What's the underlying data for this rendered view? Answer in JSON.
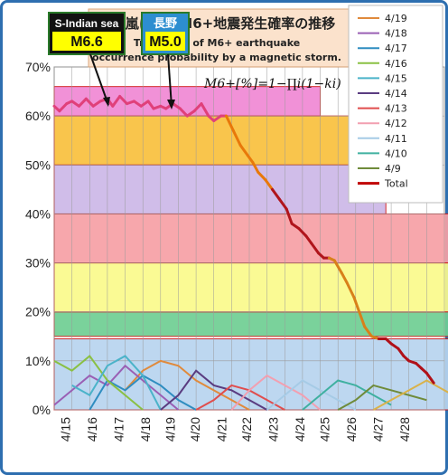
{
  "chart_data": {
    "type": "line",
    "title_jp": "磁気嵐によるM6+地震発生確率の推移",
    "title_en_1": "Transition of M6+ earthquake",
    "title_en_2": "occurrence probability by a magnetic storm.",
    "formula": "M6+[%]=1−∏i(1−ki)",
    "y_ticks": [
      "0%",
      "10%",
      "20%",
      "30%",
      "40%",
      "50%",
      "60%",
      "70%"
    ],
    "ylim": [
      0,
      70
    ],
    "x_ticks": [
      "4/15",
      "4/16",
      "4/17",
      "4/18",
      "4/19",
      "4/20",
      "4/21",
      "4/22",
      "4/23",
      "4/24",
      "4/25",
      "4/26",
      "4/27",
      "4/28"
    ],
    "legend": [
      "4/19",
      "4/18",
      "4/17",
      "4/16",
      "4/15",
      "4/14",
      "4/13",
      "4/12",
      "4/11",
      "4/10",
      "4/9",
      "Total"
    ],
    "annotations": [
      {
        "label1": "S-Indian sea",
        "label2": "M6.6"
      },
      {
        "label1": "長野",
        "label2": "M5.0"
      }
    ],
    "bands": [
      {
        "from": 0,
        "to": 14.5,
        "color": "#b8d4ef",
        "end": 28.5
      },
      {
        "from": 15,
        "to": 20,
        "color": "#6fcf93",
        "end": 26.5
      },
      {
        "from": 20,
        "to": 30,
        "color": "#fafa8c",
        "end": 25.7
      },
      {
        "from": 30,
        "to": 40,
        "color": "#f7a0a6",
        "end": 23.2
      },
      {
        "from": 40,
        "to": 50,
        "color": "#cdb8e8",
        "end": 18.7
      },
      {
        "from": 50,
        "to": 60,
        "color": "#f9c13d",
        "end": 17.2
      },
      {
        "from": 60,
        "to": 66,
        "color": "#f088d4",
        "end": 15.0
      }
    ],
    "total": [
      [
        0,
        62
      ],
      [
        0.3,
        61
      ],
      [
        0.7,
        62.5
      ],
      [
        1,
        63
      ],
      [
        1.4,
        62
      ],
      [
        1.8,
        63.5
      ],
      [
        2.2,
        62
      ],
      [
        2.6,
        63
      ],
      [
        3,
        63.5
      ],
      [
        3.3,
        62
      ],
      [
        3.7,
        64
      ],
      [
        4.1,
        62.5
      ],
      [
        4.5,
        63
      ],
      [
        4.9,
        62
      ],
      [
        5.3,
        63
      ],
      [
        5.6,
        61.5
      ],
      [
        6,
        62
      ],
      [
        6.3,
        61.5
      ],
      [
        6.7,
        62.5
      ],
      [
        7.1,
        61.5
      ],
      [
        7.5,
        60
      ],
      [
        7.9,
        61
      ],
      [
        8.3,
        62.5
      ],
      [
        8.7,
        60
      ],
      [
        9,
        59
      ],
      [
        9.4,
        60
      ],
      [
        9.7,
        60
      ],
      [
        10.1,
        57
      ],
      [
        10.5,
        54
      ],
      [
        10.9,
        52
      ],
      [
        11.2,
        50.5
      ],
      [
        11.5,
        48.5
      ],
      [
        11.9,
        47
      ],
      [
        12.3,
        45
      ],
      [
        12.7,
        43
      ],
      [
        13.1,
        41
      ],
      [
        13.4,
        38
      ],
      [
        13.8,
        37
      ],
      [
        14.2,
        35.5
      ],
      [
        14.5,
        34
      ],
      [
        14.9,
        32
      ],
      [
        15.2,
        31
      ],
      [
        15.5,
        31
      ],
      [
        15.8,
        30.5
      ],
      [
        16.2,
        28
      ],
      [
        16.5,
        26
      ],
      [
        16.9,
        23
      ],
      [
        17.2,
        20
      ],
      [
        17.5,
        17
      ],
      [
        17.9,
        15
      ],
      [
        18.3,
        14.5
      ],
      [
        18.7,
        14.5
      ],
      [
        19,
        13.5
      ],
      [
        19.4,
        12.5
      ],
      [
        19.7,
        11
      ],
      [
        20,
        10
      ],
      [
        20.4,
        9.5
      ],
      [
        20.7,
        8.5
      ],
      [
        21,
        7.5
      ],
      [
        21.4,
        5.5
      ]
    ],
    "subseries": [
      {
        "color": "#e08a3c",
        "values": [
          [
            4,
            4
          ],
          [
            5,
            8
          ],
          [
            6,
            10
          ],
          [
            7,
            9
          ],
          [
            8,
            6
          ],
          [
            9,
            4
          ],
          [
            10,
            2
          ],
          [
            11,
            0
          ]
        ]
      },
      {
        "color": "#9a5fb4",
        "values": [
          [
            0,
            1
          ],
          [
            1,
            4
          ],
          [
            2,
            7
          ],
          [
            3,
            5
          ],
          [
            4,
            9
          ],
          [
            5,
            6
          ],
          [
            6,
            3
          ],
          [
            7,
            0
          ]
        ]
      },
      {
        "color": "#2f8dc0",
        "values": [
          [
            2,
            0
          ],
          [
            3,
            6
          ],
          [
            4,
            4
          ],
          [
            5,
            7
          ],
          [
            6,
            5
          ],
          [
            7,
            2
          ],
          [
            8,
            0
          ]
        ]
      },
      {
        "color": "#8ac043",
        "values": [
          [
            0,
            10
          ],
          [
            1,
            8
          ],
          [
            2,
            11
          ],
          [
            3,
            6
          ],
          [
            4,
            3
          ],
          [
            5,
            0
          ]
        ]
      },
      {
        "color": "#4bb3c9",
        "values": [
          [
            1,
            5
          ],
          [
            2,
            3
          ],
          [
            3,
            9
          ],
          [
            4,
            11
          ],
          [
            5,
            7
          ],
          [
            6,
            0
          ]
        ]
      },
      {
        "color": "#5a3c80",
        "values": [
          [
            6,
            0
          ],
          [
            7,
            3
          ],
          [
            8,
            8
          ],
          [
            9,
            5
          ],
          [
            10,
            4
          ],
          [
            11,
            2
          ],
          [
            12,
            0
          ]
        ]
      },
      {
        "color": "#e04d4d",
        "values": [
          [
            8,
            0
          ],
          [
            9,
            2
          ],
          [
            10,
            5
          ],
          [
            11,
            4
          ],
          [
            12,
            2
          ],
          [
            13,
            0
          ]
        ]
      },
      {
        "color": "#f29fb0",
        "values": [
          [
            10,
            0
          ],
          [
            11,
            4
          ],
          [
            12,
            7
          ],
          [
            13,
            5
          ],
          [
            14,
            3
          ],
          [
            15,
            0
          ]
        ]
      },
      {
        "color": "#a6cbe6",
        "values": [
          [
            12,
            0
          ],
          [
            13,
            3
          ],
          [
            14,
            6
          ],
          [
            15,
            4
          ],
          [
            16,
            2
          ],
          [
            17,
            0
          ]
        ]
      },
      {
        "color": "#3fb0a0",
        "values": [
          [
            14,
            0
          ],
          [
            15,
            3
          ],
          [
            16,
            6
          ],
          [
            17,
            5
          ],
          [
            18,
            3
          ],
          [
            19,
            1
          ]
        ]
      },
      {
        "color": "#6f8b3a",
        "values": [
          [
            16,
            0
          ],
          [
            17,
            2
          ],
          [
            18,
            5
          ],
          [
            19,
            4
          ],
          [
            20,
            3
          ],
          [
            21,
            2
          ]
        ]
      },
      {
        "color": "#d9b24a",
        "values": [
          [
            18,
            0
          ],
          [
            19,
            2
          ],
          [
            20,
            4
          ],
          [
            21,
            6
          ],
          [
            22,
            4
          ],
          [
            23,
            2
          ]
        ]
      }
    ]
  },
  "legend_colors": [
    "#e08a3c",
    "#9a5fb4",
    "#2f8dc0",
    "#8ac043",
    "#4bb3c9",
    "#5a3c80",
    "#e04d4d",
    "#f29fb0",
    "#a6cbe6",
    "#3fb0a0",
    "#6f8b3a",
    "#c00000"
  ]
}
